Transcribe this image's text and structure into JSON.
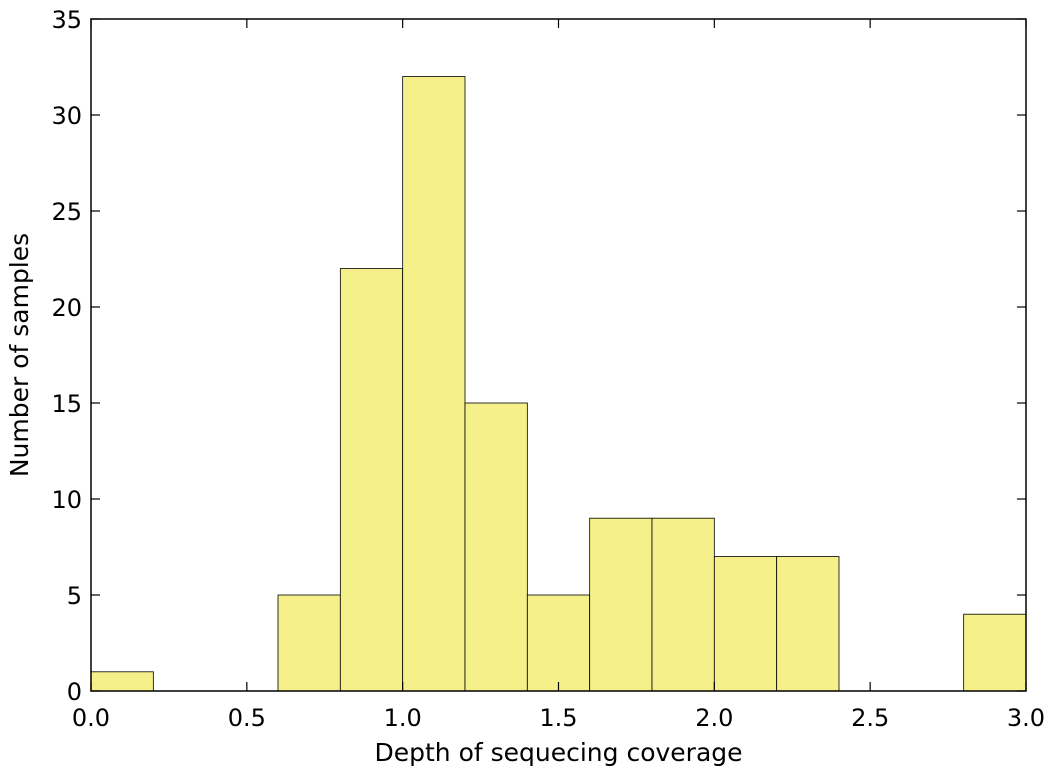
{
  "chart_data": {
    "type": "bar",
    "title": "",
    "xlabel": "Depth of sequecing coverage",
    "ylabel": "Number of samples",
    "bin_edges": [
      0.0,
      0.2,
      0.4,
      0.6,
      0.8,
      1.0,
      1.2,
      1.4,
      1.6,
      1.8,
      2.0,
      2.2,
      2.4,
      2.6,
      2.8,
      3.0
    ],
    "values": [
      1,
      0,
      0,
      5,
      22,
      32,
      15,
      5,
      9,
      9,
      7,
      7,
      0,
      0,
      4
    ],
    "xlim": [
      0.0,
      3.0
    ],
    "ylim": [
      0,
      35
    ],
    "xticks": [
      0.0,
      0.5,
      1.0,
      1.5,
      2.0,
      2.5,
      3.0
    ],
    "xtick_labels": [
      "0.0",
      "0.5",
      "1.0",
      "1.5",
      "2.0",
      "2.5",
      "3.0"
    ],
    "yticks": [
      0,
      5,
      10,
      15,
      20,
      25,
      30,
      35
    ],
    "ytick_labels": [
      "0",
      "5",
      "10",
      "15",
      "20",
      "25",
      "30",
      "35"
    ],
    "grid": false,
    "legend": "none",
    "colors": {
      "bar_fill": "#f5f08a",
      "bar_edge": "#000000",
      "axes": "#000000"
    }
  }
}
